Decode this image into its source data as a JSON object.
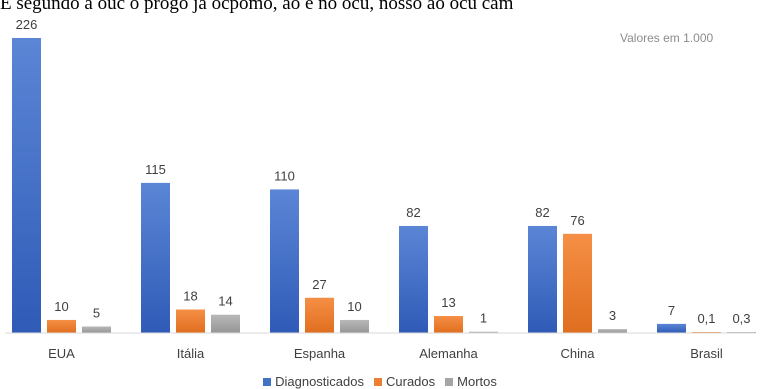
{
  "header_text": "E segundo a ouc o progo ja ocpomo, ao e no ocu, nosso ao ocu cam",
  "note": "Valores em 1.000",
  "colors": {
    "Diagnosticados": "#4472c4",
    "Curados": "#ed7d31",
    "Mortos": "#a5a5a5",
    "axis": "#d9d9d9",
    "labels": "#404040"
  },
  "chart_data": {
    "type": "bar",
    "title": "",
    "xlabel": "",
    "ylabel": "",
    "categories": [
      "EUA",
      "Itália",
      "Espanha",
      "Alemanha",
      "China",
      "Brasil"
    ],
    "series": [
      {
        "name": "Diagnosticados",
        "values": [
          226,
          115,
          110,
          82,
          82,
          7
        ],
        "labels": [
          "226",
          "115",
          "110",
          "82",
          "82",
          "7"
        ]
      },
      {
        "name": "Curados",
        "values": [
          10,
          18,
          27,
          13,
          76,
          0.1
        ],
        "labels": [
          "10",
          "18",
          "27",
          "13",
          "76",
          "0,1"
        ]
      },
      {
        "name": "Mortos",
        "values": [
          5,
          14,
          10,
          1,
          3,
          0.3
        ],
        "labels": [
          "5",
          "14",
          "10",
          "1",
          "3",
          "0,3"
        ]
      }
    ],
    "ylim": [
      0,
      226
    ],
    "grid": false,
    "legend": "bottom"
  }
}
